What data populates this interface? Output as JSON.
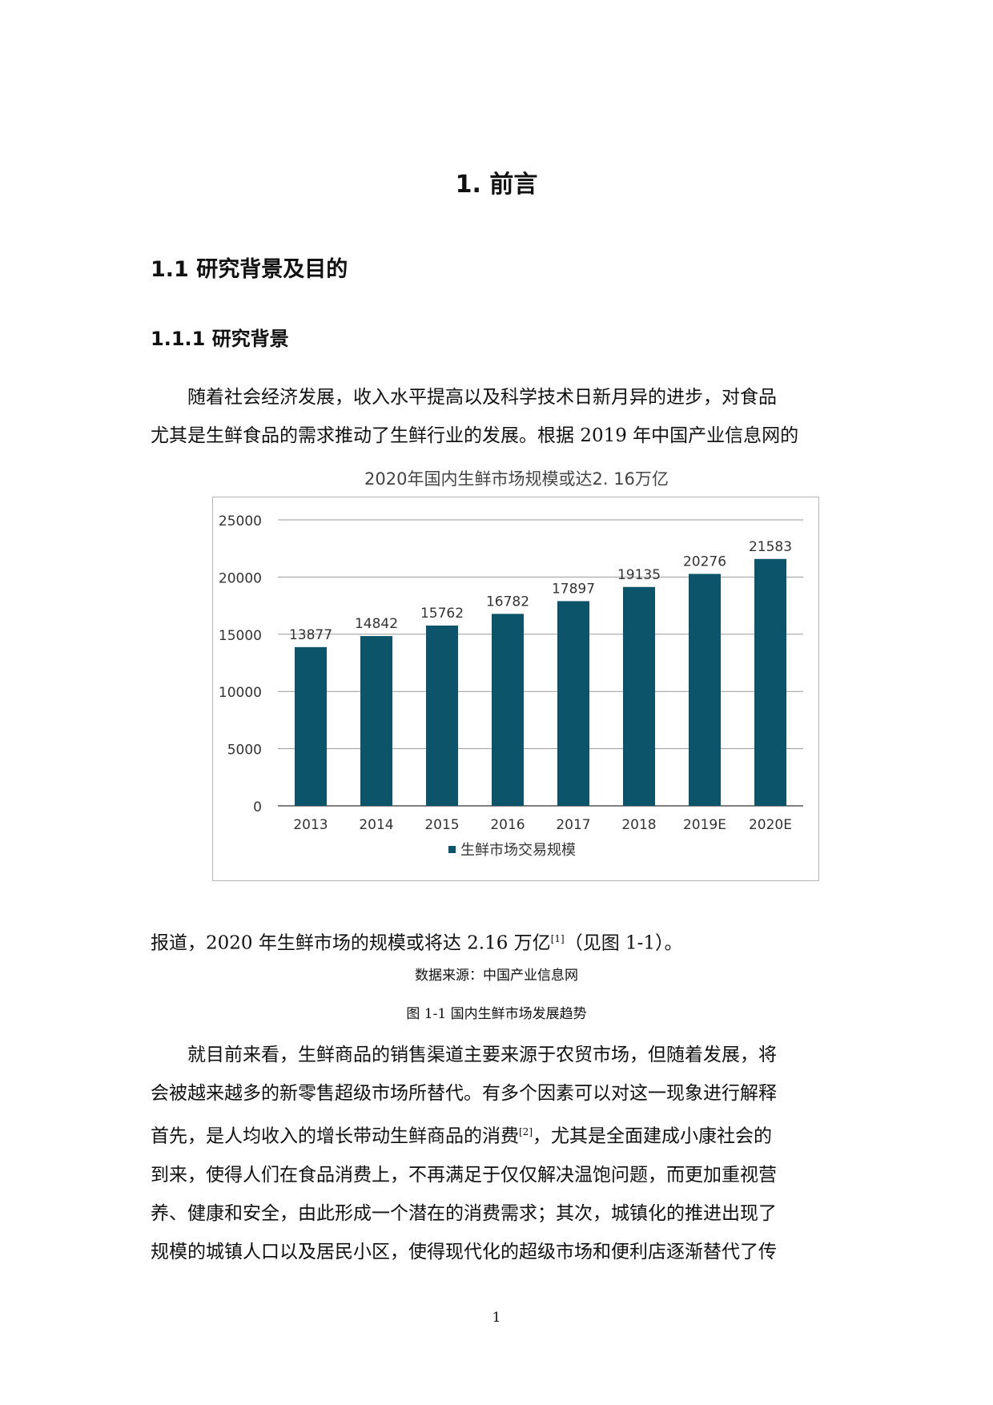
{
  "heading1": "1. 前言",
  "heading2": "1.1 研究背景及目的",
  "heading3": "1.1.1 研究背景",
  "para1": {
    "line1": "随着社会经济发展，收入水平提高以及科学技术日新月异的进步，对食品",
    "line2": "尤其是生鲜食品的需求推动了生鲜行业的发展。根据 2019 年中国产业信息网的"
  },
  "para2": {
    "text": "报道，2020 年生鲜市场的规模或将达 2.16 万亿",
    "sup": "[1]",
    "after": "（见图 1-1）。"
  },
  "figure": {
    "source": "数据来源：中国产业信息网",
    "caption": "图 1-1 国内生鲜市场发展趋势"
  },
  "para3": {
    "line1": "就目前来看，生鲜商品的销售渠道主要来源于农贸市场，但随着发展，将",
    "line2": "会被越来越多的新零售超级市场所替代。有多个因素可以对这一现象进行解释",
    "line3a": "首先，是人均收入的增长带动生鲜商品的消费",
    "line3sup": "[2]",
    "line3b": "，尤其是全面建成小康社会的",
    "line4": "到来，使得人们在食品消费上，不再满足于仅仅解决温饱问题，而更加重视营",
    "line5": "养、健康和安全，由此形成一个潜在的消费需求；其次，城镇化的推进出现了",
    "line6": "规模的城镇人口以及居民小区，使得现代化的超级市场和便利店逐渐替代了传"
  },
  "page_number": "1",
  "chart_data": {
    "type": "bar",
    "title": "2020年国内生鲜市场规模或达2. 16万亿",
    "categories": [
      "2013",
      "2014",
      "2015",
      "2016",
      "2017",
      "2018",
      "2019E",
      "2020E"
    ],
    "series": [
      {
        "name": "生鲜市场交易规模",
        "values": [
          13877,
          14842,
          15762,
          16782,
          17897,
          19135,
          20276,
          21583
        ]
      }
    ],
    "data_labels": [
      "13877",
      "14842",
      "15762",
      "16782",
      "17897",
      "19135",
      "20276",
      "21583"
    ],
    "yticks": [
      "0",
      "5000",
      "10000",
      "15000",
      "20000",
      "25000"
    ],
    "ylim": [
      0,
      25000
    ],
    "grid": true,
    "legend": "bottom",
    "bar_color": "#0b5469"
  }
}
